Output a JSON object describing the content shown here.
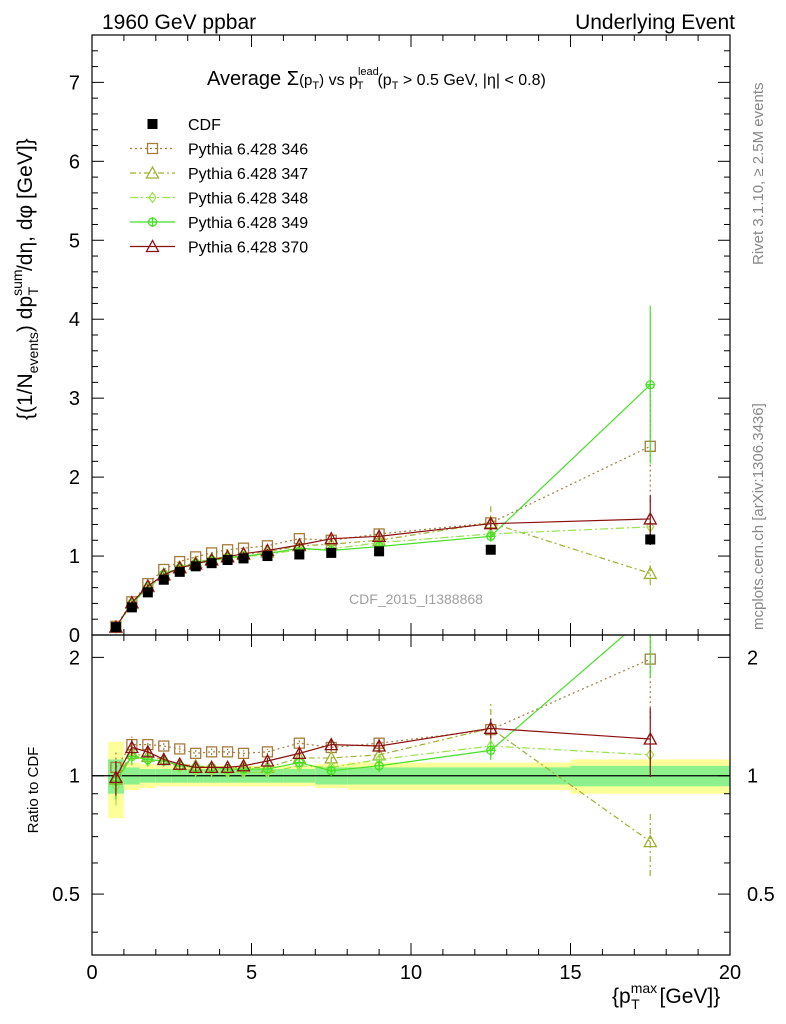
{
  "header": {
    "left": "1960 GeV ppbar",
    "right": "Underlying Event"
  },
  "side_labels": {
    "rivet": "Rivet 3.1.10, ≥ 2.5M events",
    "mcplots": "mcplots.cern.ch [arXiv:1306.3436]"
  },
  "title": {
    "prefix": "Average ",
    "sigma": "Σ",
    "pt_open": "(p",
    "sub_t": "T",
    "pt_close": ")",
    "vs": " vs p",
    "sup_lead": "lead",
    "cut": "(p",
    "cut_rest": " > 0.5 GeV, |η| < 0.8)"
  },
  "ylabel_main": {
    "p1": "{(1/N",
    "sub_events": "events",
    "p2": ") dp",
    "sup_sum": "sum",
    "sub_T": "T",
    "p3": " /dη, dφ [GeV]}"
  },
  "ylabel_ratio": "Ratio to CDF",
  "xlabel": {
    "p1": "{p",
    "sup_max": "max",
    "sub_T": "T",
    "p2": " [GeV]}"
  },
  "watermark": "CDF_2015_I1388868",
  "chart_data": {
    "type": "line",
    "x_range": [
      0,
      20
    ],
    "main_y_range": [
      0,
      7.6
    ],
    "ratio_y_range": [
      0.35,
      2.28
    ],
    "x_ticks": [
      "0",
      "5",
      "10",
      "15",
      "20"
    ],
    "main_y_ticks": [
      "0",
      "1",
      "2",
      "3",
      "4",
      "5",
      "6",
      "7"
    ],
    "ratio_y_ticks": [
      "0.5",
      "1",
      "2"
    ],
    "x": [
      0.75,
      1.25,
      1.75,
      2.25,
      2.75,
      3.25,
      3.75,
      4.25,
      4.75,
      5.5,
      6.5,
      7.5,
      9.0,
      12.5,
      17.5
    ],
    "data": {
      "name": "CDF",
      "values": [
        0.1,
        0.35,
        0.54,
        0.7,
        0.8,
        0.87,
        0.91,
        0.95,
        0.97,
        1.0,
        1.02,
        1.04,
        1.06,
        1.08,
        1.21
      ],
      "errors": [
        0.01,
        0.01,
        0.01,
        0.01,
        0.01,
        0.01,
        0.01,
        0.01,
        0.01,
        0.01,
        0.02,
        0.02,
        0.02,
        0.03,
        0.07
      ],
      "ratio_band_x": [
        0.5,
        1.0,
        1.5,
        2.0,
        2.5,
        3.0,
        3.5,
        4.0,
        4.5,
        5.0,
        6.0,
        7.0,
        8.0,
        10.0,
        15.0,
        20.0
      ],
      "ratio_band_yellow": [
        0.22,
        0.08,
        0.07,
        0.06,
        0.06,
        0.06,
        0.06,
        0.06,
        0.06,
        0.06,
        0.06,
        0.07,
        0.08,
        0.08,
        0.1
      ],
      "ratio_band_green": [
        0.1,
        0.05,
        0.04,
        0.04,
        0.04,
        0.04,
        0.04,
        0.04,
        0.04,
        0.04,
        0.04,
        0.05,
        0.05,
        0.05,
        0.06
      ]
    },
    "series": [
      {
        "name": "Pythia 6.428 346",
        "color": "#a67c3c",
        "dash": "2,3",
        "marker": "square",
        "values": [
          0.11,
          0.42,
          0.65,
          0.83,
          0.93,
          0.99,
          1.04,
          1.08,
          1.1,
          1.13,
          1.22,
          1.2,
          1.28,
          1.42,
          2.39
        ],
        "ratios": [
          1.05,
          1.2,
          1.2,
          1.19,
          1.17,
          1.14,
          1.15,
          1.15,
          1.14,
          1.15,
          1.21,
          1.18,
          1.21,
          1.31,
          1.98
        ],
        "errors": [
          0.01,
          0.02,
          0.02,
          0.02,
          0.02,
          0.02,
          0.02,
          0.02,
          0.02,
          0.02,
          0.03,
          0.03,
          0.04,
          0.08,
          0.7
        ]
      },
      {
        "name": "Pythia 6.428 347",
        "color": "#a0b030",
        "dash": "6,3,2,3",
        "marker": "triangle",
        "values": [
          0.1,
          0.4,
          0.61,
          0.77,
          0.86,
          0.92,
          0.96,
          1.0,
          1.02,
          1.05,
          1.13,
          1.15,
          1.2,
          1.42,
          0.78
        ],
        "ratios": [
          0.98,
          1.14,
          1.12,
          1.1,
          1.07,
          1.06,
          1.05,
          1.05,
          1.05,
          1.05,
          1.11,
          1.11,
          1.13,
          1.32,
          0.68
        ],
        "errors": [
          0.01,
          0.02,
          0.02,
          0.02,
          0.02,
          0.02,
          0.02,
          0.02,
          0.02,
          0.02,
          0.03,
          0.03,
          0.04,
          0.22,
          0.15
        ]
      },
      {
        "name": "Pythia 6.428 348",
        "color": "#99e24a",
        "dash": "8,3,2,3",
        "marker": "diamond",
        "values": [
          0.09,
          0.4,
          0.59,
          0.76,
          0.84,
          0.9,
          0.94,
          0.97,
          0.99,
          1.02,
          1.08,
          1.09,
          1.17,
          1.28,
          1.37
        ],
        "ratios": [
          0.94,
          1.14,
          1.09,
          1.09,
          1.05,
          1.03,
          1.03,
          1.02,
          1.02,
          1.02,
          1.06,
          1.05,
          1.1,
          1.19,
          1.13
        ],
        "errors": [
          0.01,
          0.02,
          0.02,
          0.02,
          0.02,
          0.02,
          0.02,
          0.02,
          0.02,
          0.02,
          0.03,
          0.03,
          0.04,
          0.06,
          0.1
        ]
      },
      {
        "name": "Pythia 6.428 349",
        "color": "#44e024",
        "dash": "",
        "marker": "cross",
        "values": [
          0.1,
          0.4,
          0.6,
          0.77,
          0.85,
          0.91,
          0.95,
          0.98,
          1.0,
          1.03,
          1.1,
          1.07,
          1.12,
          1.25,
          3.17
        ],
        "ratios": [
          0.97,
          1.12,
          1.1,
          1.09,
          1.06,
          1.05,
          1.05,
          1.04,
          1.04,
          1.04,
          1.08,
          1.03,
          1.06,
          1.16,
          2.6
        ],
        "errors": [
          0.01,
          0.02,
          0.02,
          0.02,
          0.02,
          0.02,
          0.02,
          0.02,
          0.02,
          0.02,
          0.03,
          0.03,
          0.04,
          0.07,
          1.0
        ]
      },
      {
        "name": "Pythia 6.428 370",
        "color": "#8b1010",
        "dash": "",
        "marker": "triangle",
        "values": [
          0.1,
          0.41,
          0.62,
          0.76,
          0.85,
          0.9,
          0.95,
          0.99,
          1.03,
          1.07,
          1.14,
          1.22,
          1.25,
          1.41,
          1.47
        ],
        "ratios": [
          0.99,
          1.18,
          1.15,
          1.1,
          1.07,
          1.05,
          1.05,
          1.05,
          1.06,
          1.09,
          1.14,
          1.2,
          1.19,
          1.32,
          1.24
        ],
        "errors": [
          0.01,
          0.02,
          0.02,
          0.02,
          0.02,
          0.02,
          0.02,
          0.02,
          0.02,
          0.02,
          0.03,
          0.04,
          0.05,
          0.08,
          0.3
        ]
      }
    ]
  }
}
